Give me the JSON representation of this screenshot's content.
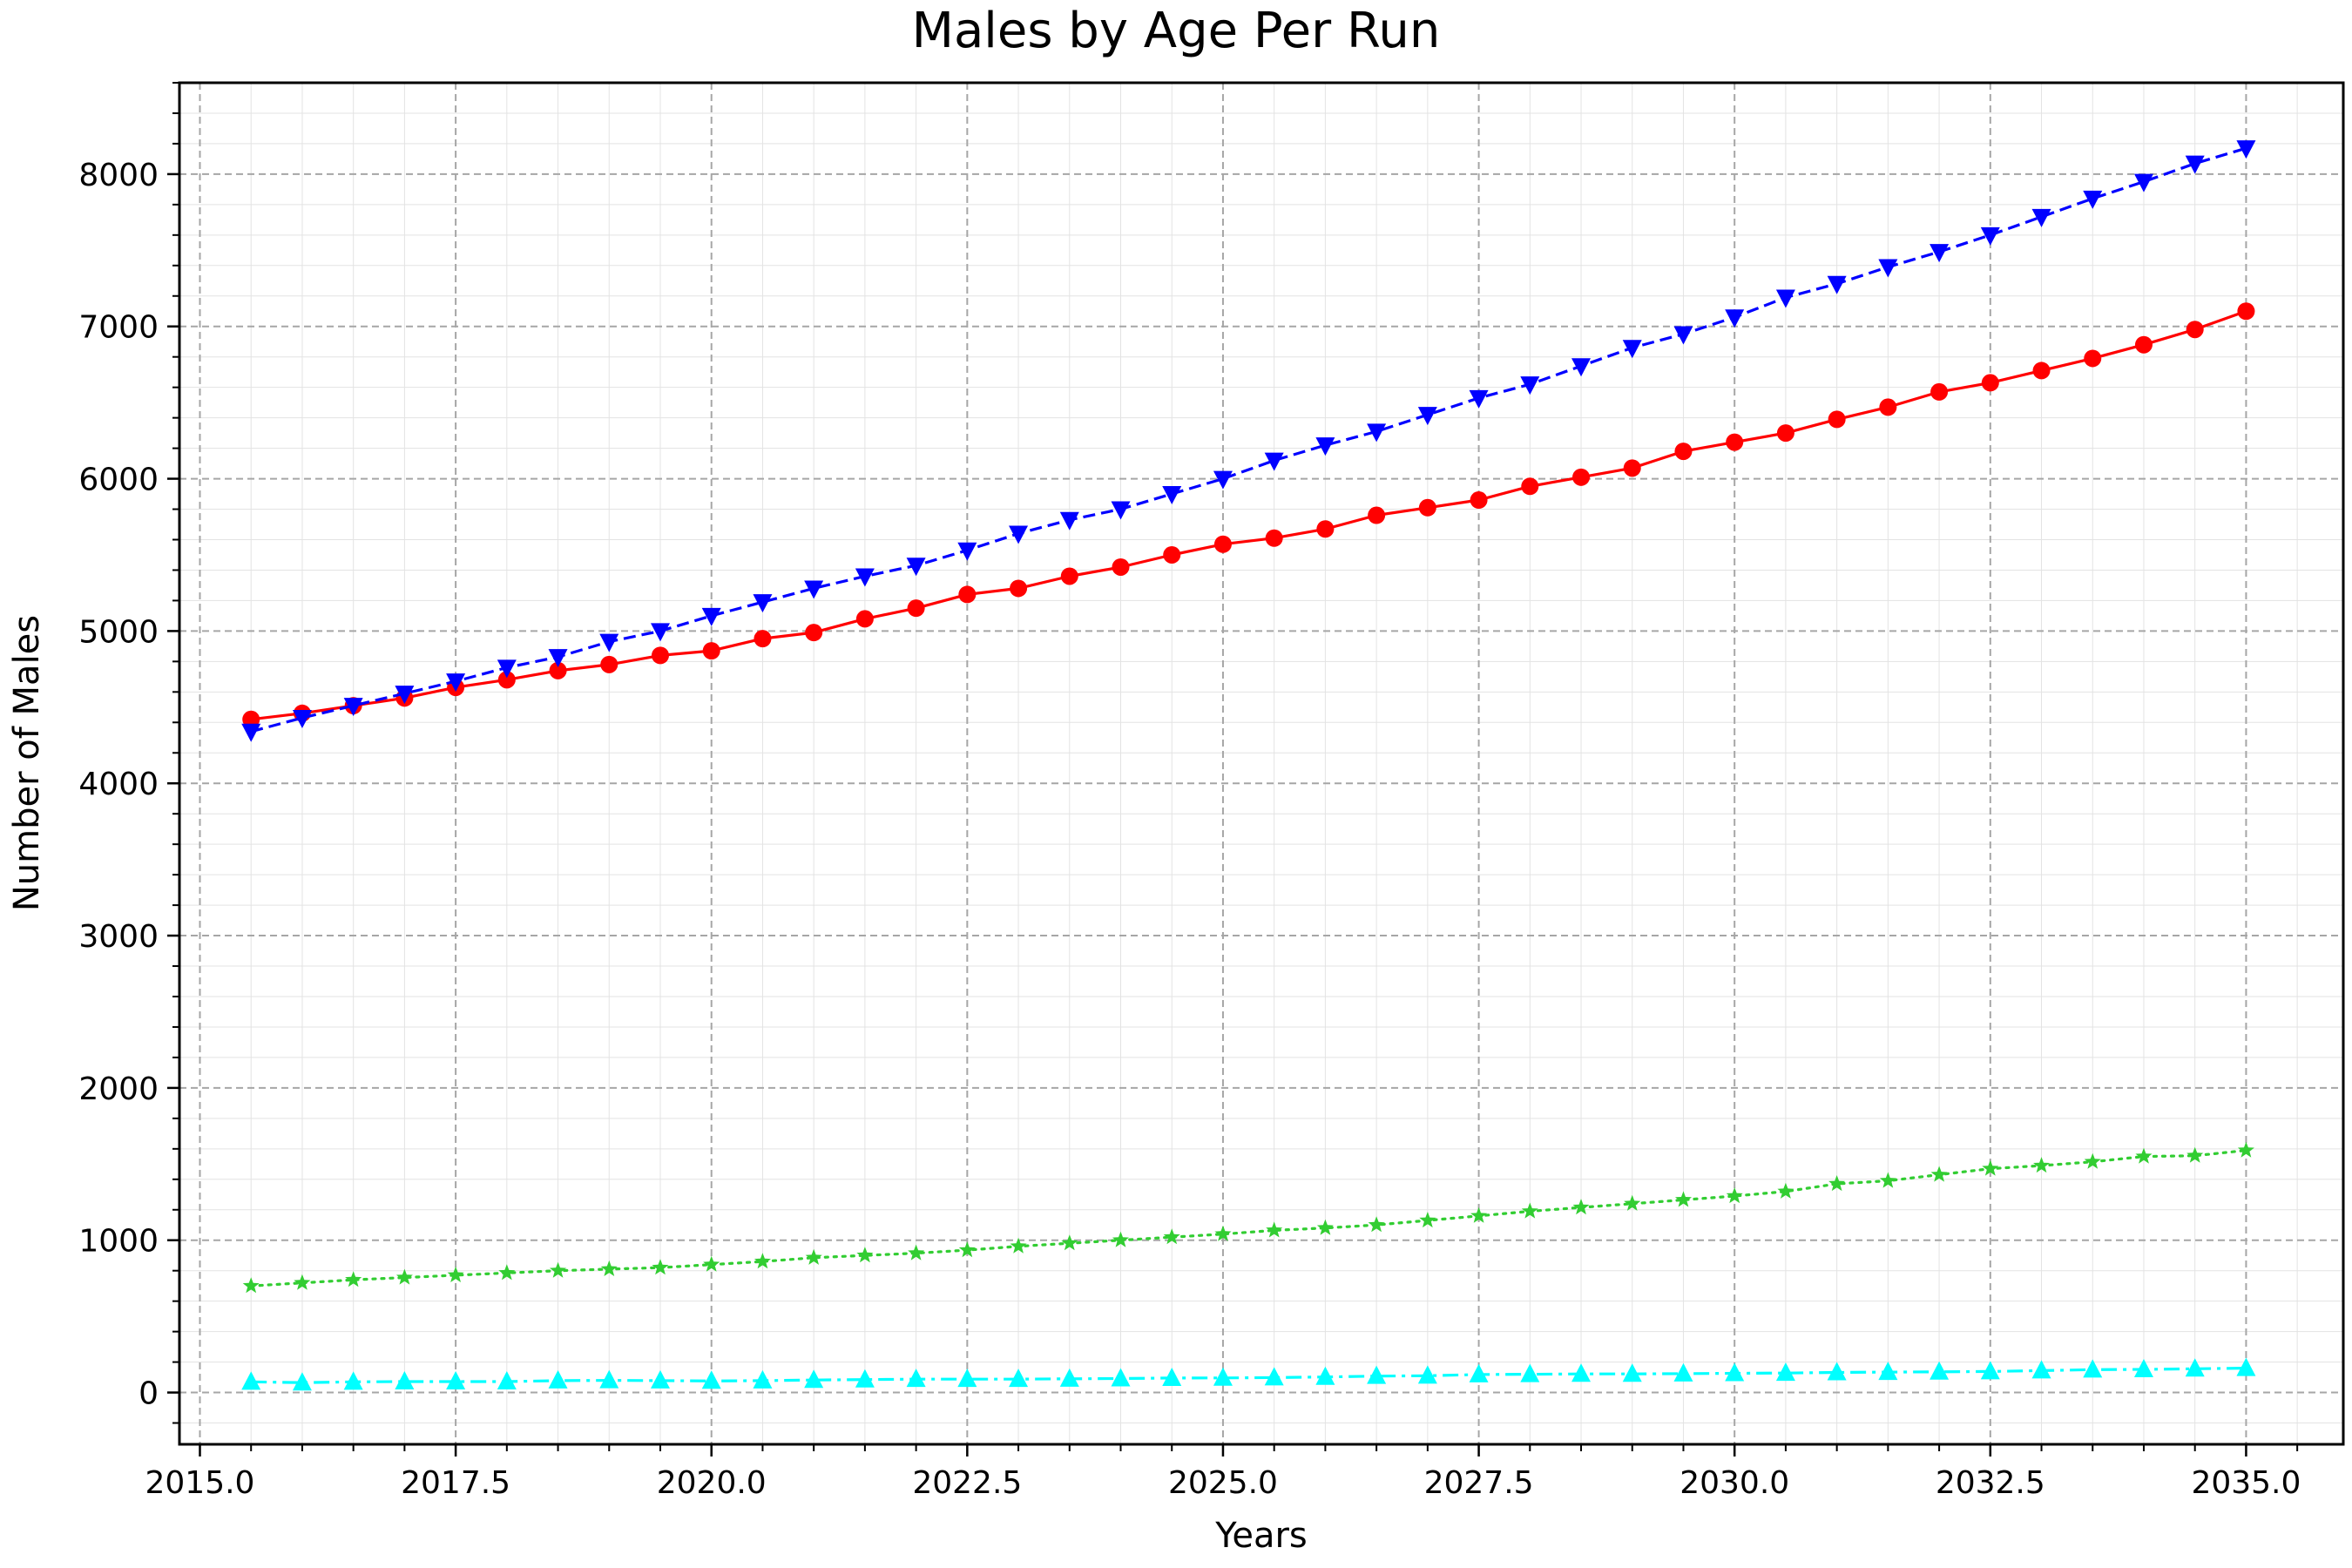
{
  "chart_data": {
    "type": "line",
    "title": "Males by Age Per Run",
    "xlabel": "Years",
    "ylabel": "Number of Males",
    "xlim": [
      2014.8,
      2035.95
    ],
    "ylim": [
      -340,
      8600
    ],
    "x_ticks": [
      2015.0,
      2017.5,
      2020.0,
      2022.5,
      2025.0,
      2027.5,
      2030.0,
      2032.5,
      2035.0
    ],
    "x_tick_labels": [
      "2015.0",
      "2017.5",
      "2020.0",
      "2022.5",
      "2025.0",
      "2027.5",
      "2030.0",
      "2032.5",
      "2035.0"
    ],
    "y_ticks": [
      0,
      1000,
      2000,
      3000,
      4000,
      5000,
      6000,
      7000,
      8000
    ],
    "y_tick_labels": [
      "0",
      "1000",
      "2000",
      "3000",
      "4000",
      "5000",
      "6000",
      "7000",
      "8000"
    ],
    "grid": true,
    "minor_grid": true,
    "legend": "none",
    "x": [
      2015.5,
      2016.0,
      2016.5,
      2017.0,
      2017.5,
      2018.0,
      2018.5,
      2019.0,
      2019.5,
      2020.0,
      2020.5,
      2021.0,
      2021.5,
      2022.0,
      2022.5,
      2023.0,
      2023.5,
      2024.0,
      2024.5,
      2025.0,
      2025.5,
      2026.0,
      2026.5,
      2027.0,
      2027.5,
      2028.0,
      2028.5,
      2029.0,
      2029.5,
      2030.0,
      2030.5,
      2031.0,
      2031.5,
      2032.0,
      2032.5,
      2033.0,
      2033.5,
      2034.0,
      2034.5,
      2035.0
    ],
    "series": [
      {
        "color": "#ff0000",
        "line_style": "solid",
        "marker": "circle",
        "values": [
          4420,
          4460,
          4510,
          4560,
          4630,
          4680,
          4740,
          4780,
          4840,
          4870,
          4950,
          4990,
          5080,
          5150,
          5240,
          5280,
          5360,
          5420,
          5500,
          5570,
          5610,
          5670,
          5760,
          5810,
          5860,
          5950,
          6010,
          6070,
          6180,
          6240,
          6300,
          6390,
          6470,
          6570,
          6630,
          6710,
          6790,
          6880,
          6980,
          7100
        ]
      },
      {
        "color": "#0000ff",
        "line_style": "dashed",
        "marker": "triangle-down",
        "values": [
          4340,
          4430,
          4510,
          4590,
          4670,
          4760,
          4830,
          4930,
          5000,
          5100,
          5190,
          5280,
          5360,
          5430,
          5530,
          5640,
          5730,
          5800,
          5900,
          6000,
          6120,
          6220,
          6310,
          6420,
          6530,
          6620,
          6740,
          6860,
          6950,
          7060,
          7190,
          7280,
          7390,
          7490,
          7600,
          7720,
          7840,
          7950,
          8070,
          8170
        ]
      },
      {
        "color": "#32cd32",
        "line_style": "dotted",
        "marker": "star",
        "values": [
          700,
          720,
          740,
          755,
          770,
          785,
          800,
          810,
          820,
          840,
          860,
          885,
          900,
          915,
          935,
          960,
          980,
          1000,
          1020,
          1040,
          1065,
          1080,
          1100,
          1130,
          1160,
          1190,
          1215,
          1240,
          1265,
          1290,
          1320,
          1370,
          1390,
          1430,
          1470,
          1490,
          1515,
          1550,
          1555,
          1590
        ]
      },
      {
        "color": "#00ffff",
        "line_style": "dashdot",
        "marker": "triangle-up",
        "values": [
          70,
          65,
          70,
          72,
          72,
          72,
          78,
          80,
          78,
          76,
          78,
          82,
          85,
          88,
          88,
          88,
          90,
          92,
          95,
          96,
          98,
          102,
          108,
          110,
          118,
          120,
          122,
          122,
          124,
          126,
          128,
          132,
          134,
          136,
          138,
          144,
          150,
          152,
          156,
          160
        ]
      }
    ]
  }
}
